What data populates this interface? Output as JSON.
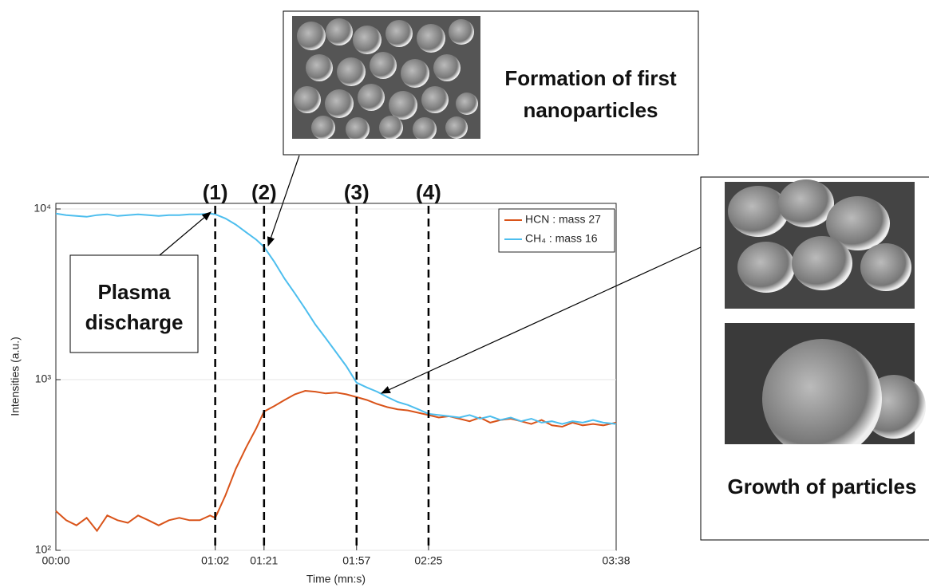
{
  "chart_data": {
    "type": "line",
    "x_label": "Time (mn:s)",
    "y_label": "Intensities (a.u.)",
    "log_y": true,
    "grid": true,
    "legend": "upper right",
    "xlim": [
      0,
      218
    ],
    "xticks": [
      {
        "value": 0,
        "label": "00:00"
      },
      {
        "value": 62,
        "label": "01:02"
      },
      {
        "value": 81,
        "label": "01:21"
      },
      {
        "value": 117,
        "label": "01:57"
      },
      {
        "value": 145,
        "label": "02:25"
      },
      {
        "value": 218,
        "label": "03:38"
      }
    ],
    "ylim": [
      100,
      10000
    ],
    "yticks": [
      {
        "value": 100,
        "label": "10²"
      },
      {
        "value": 1000,
        "label": "10³"
      },
      {
        "value": 10000,
        "label": "10⁴"
      }
    ],
    "x": [
      0,
      4,
      8,
      12,
      16,
      20,
      24,
      28,
      32,
      36,
      40,
      44,
      48,
      52,
      56,
      60,
      62,
      66,
      70,
      74,
      78,
      81,
      85,
      89,
      93,
      97,
      101,
      105,
      109,
      113,
      117,
      121,
      125,
      129,
      133,
      137,
      141,
      145,
      149,
      153,
      157,
      161,
      165,
      169,
      173,
      177,
      181,
      185,
      189,
      193,
      197,
      201,
      205,
      209,
      213,
      218
    ],
    "series": [
      {
        "name": "HCN : mass 27",
        "color": "#d95319",
        "values": [
          170,
          150,
          140,
          155,
          130,
          160,
          150,
          145,
          160,
          150,
          140,
          150,
          155,
          150,
          150,
          160,
          155,
          210,
          300,
          400,
          520,
          650,
          700,
          760,
          820,
          860,
          850,
          830,
          840,
          820,
          790,
          760,
          720,
          690,
          670,
          660,
          640,
          620,
          600,
          610,
          590,
          570,
          600,
          560,
          580,
          590,
          570,
          550,
          580,
          540,
          530,
          560,
          540,
          550,
          540,
          560
        ]
      },
      {
        "name": "CH₄ : mass 16",
        "color": "#4dbeee",
        "values": [
          9400,
          9200,
          9100,
          9000,
          9200,
          9300,
          9100,
          9200,
          9300,
          9200,
          9100,
          9200,
          9200,
          9300,
          9300,
          9400,
          9300,
          8800,
          8100,
          7300,
          6600,
          6000,
          4900,
          3900,
          3200,
          2600,
          2100,
          1750,
          1450,
          1200,
          960,
          900,
          850,
          790,
          740,
          710,
          670,
          630,
          620,
          610,
          600,
          620,
          590,
          610,
          580,
          600,
          570,
          590,
          560,
          570,
          550,
          570,
          560,
          580,
          560,
          550
        ]
      }
    ],
    "events": [
      {
        "label": "(1)",
        "x": 62
      },
      {
        "label": "(2)",
        "x": 81
      },
      {
        "label": "(3)",
        "x": 117
      },
      {
        "label": "(4)",
        "x": 145
      }
    ],
    "annotations": [
      {
        "lines": [
          "Plasma",
          "discharge"
        ]
      },
      {
        "lines": [
          "Formation of first",
          "nanoparticles"
        ]
      },
      {
        "lines": [
          "Growth of particles"
        ]
      }
    ]
  }
}
